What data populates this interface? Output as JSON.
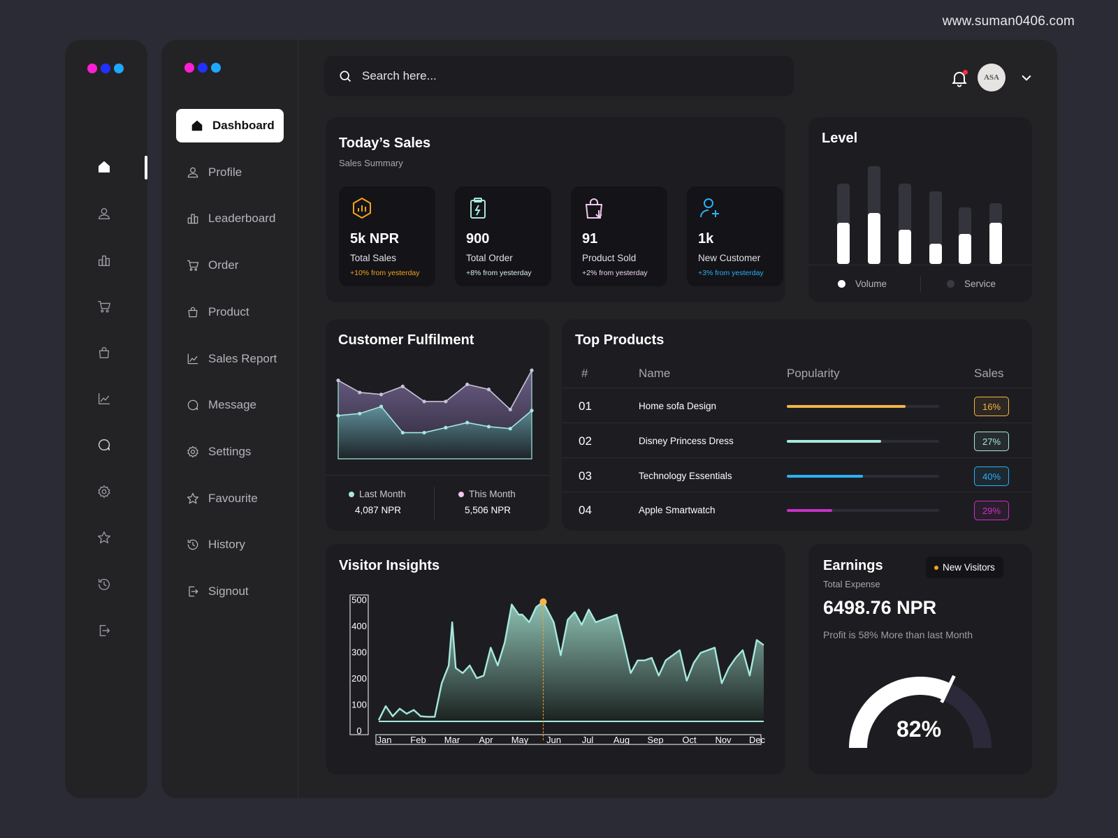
{
  "watermark": "www.suman0406.com",
  "brand_dots": [
    "#ff1fd2",
    "#2231ff",
    "#1ea8ff"
  ],
  "rail": {
    "icons": [
      "home-icon",
      "profile-icon",
      "leaderboard-icon",
      "cart-icon",
      "bag-icon",
      "chart-icon",
      "message-icon",
      "settings-icon",
      "star-icon",
      "history-icon",
      "signout-icon"
    ]
  },
  "nav": {
    "items": [
      {
        "label": "Dashboard",
        "icon": "home-icon",
        "active": true
      },
      {
        "label": "Profile",
        "icon": "profile-icon"
      },
      {
        "label": "Leaderboard",
        "icon": "leaderboard-icon"
      },
      {
        "label": "Order",
        "icon": "cart-icon"
      },
      {
        "label": "Product",
        "icon": "bag-icon"
      },
      {
        "label": "Sales Report",
        "icon": "chart-icon"
      },
      {
        "label": "Message",
        "icon": "message-icon"
      },
      {
        "label": "Settings",
        "icon": "settings-icon"
      },
      {
        "label": "Favourite",
        "icon": "star-icon"
      },
      {
        "label": "History",
        "icon": "history-icon"
      },
      {
        "label": "Signout",
        "icon": "signout-icon"
      }
    ]
  },
  "header": {
    "search_placeholder": "Search here...",
    "avatar_text": "ASA"
  },
  "todays_sales": {
    "title": "Today’s Sales",
    "subtitle": "Sales Summary",
    "stats": [
      {
        "value": "5k NPR",
        "label": "Total Sales",
        "change": "+10% from yesterday",
        "color": "#f7a21b",
        "icon": "sales-hexagon-icon"
      },
      {
        "value": "900",
        "label": "Total Order",
        "change": "+8% from yesterday",
        "color": "#a7e8df",
        "icon": "order-clipboard-icon"
      },
      {
        "value": "91",
        "label": "Product Sold",
        "change": "+2% from yesterday",
        "color": "#f2c6f0",
        "icon": "product-bag-icon"
      },
      {
        "value": "1k",
        "label": "New Customer",
        "change": "+3% from yesterday",
        "color": "#2bb1f5",
        "icon": "add-customer-icon"
      }
    ]
  },
  "level": {
    "title": "Level",
    "legend": [
      {
        "label": "Volume",
        "color": "#ffffff"
      },
      {
        "label": "Service",
        "color": "#3a3a44"
      }
    ]
  },
  "customer_fulfilment": {
    "title": "Customer Fulfilment",
    "legend": [
      {
        "label": "Last Month",
        "value": "4,087 NPR",
        "color": "#a7e8df"
      },
      {
        "label": "This Month",
        "value": "5,506 NPR",
        "color": "#f2c6f0"
      }
    ]
  },
  "top_products": {
    "title": "Top Products",
    "headers": [
      "#",
      "Name",
      "Popularity",
      "Sales"
    ],
    "rows": [
      {
        "num": "01",
        "name": "Home sofa Design",
        "popularity": 0.78,
        "sales": "16%",
        "color": "#f2b548"
      },
      {
        "num": "02",
        "name": "Disney Princess Dress",
        "popularity": 0.62,
        "sales": "27%",
        "color": "#a7e8df"
      },
      {
        "num": "03",
        "name": "Technology Essentials",
        "popularity": 0.5,
        "sales": "40%",
        "color": "#2bb1f5"
      },
      {
        "num": "04",
        "name": "Apple Smartwatch",
        "popularity": 0.3,
        "sales": "29%",
        "color": "#c632c4"
      }
    ]
  },
  "earnings": {
    "title": "Earnings",
    "badge": "New Visitors",
    "subtitle": "Total Expense",
    "value": "6498.76 NPR",
    "note": "Profit is 58% More than last Month",
    "gauge_value": 82,
    "gauge_label": "82%"
  },
  "chart_data": [
    {
      "type": "bar",
      "chart": "level",
      "series": [
        {
          "name": "Volume",
          "values": [
            0.42,
            0.52,
            0.35,
            0.21,
            0.31,
            0.42
          ]
        },
        {
          "name": "Service",
          "values": [
            1.0,
            1.0,
            1.0,
            1.0,
            1.0,
            1.0
          ]
        }
      ],
      "service_height_fraction": [
        0.82,
        1.0,
        0.82,
        0.74,
        0.58,
        0.62
      ]
    },
    {
      "type": "area",
      "chart": "customer_fulfilment",
      "series": [
        {
          "name": "This Month",
          "values": [
            78,
            66,
            64,
            72,
            57,
            57,
            74,
            69,
            49,
            88
          ]
        },
        {
          "name": "Last Month",
          "values": [
            43,
            45,
            52,
            26,
            26,
            31,
            36,
            32,
            30,
            48
          ]
        }
      ]
    },
    {
      "type": "area",
      "chart": "visitor_insights",
      "title": "Visitor Insights",
      "categories": [
        "Jan",
        "Feb",
        "Mar",
        "Apr",
        "May",
        "Jun",
        "Jul",
        "Aug",
        "Sep",
        "Oct",
        "Nov",
        "Dec"
      ],
      "yticks": [
        0,
        100,
        200,
        300,
        400,
        500
      ],
      "ylim": [
        0,
        500
      ],
      "highlight_category": "Jun",
      "x": [
        0,
        0.2,
        0.4,
        0.6,
        0.8,
        1.0,
        1.2,
        1.4,
        1.6,
        1.8,
        2.0,
        2.1,
        2.2,
        2.4,
        2.6,
        2.8,
        3.0,
        3.2,
        3.4,
        3.6,
        3.8,
        4.0,
        4.1,
        4.3,
        4.5,
        4.7,
        4.85,
        5.0,
        5.2,
        5.4,
        5.6,
        5.8,
        6.0,
        6.2,
        6.4,
        6.6,
        6.8,
        7.0,
        7.2,
        7.4,
        7.6,
        7.8,
        8.0,
        8.2,
        8.4,
        8.6,
        8.8,
        9.0,
        9.2,
        9.4,
        9.6,
        9.8,
        10.0,
        10.2,
        10.4,
        10.6,
        10.8,
        11.0
      ],
      "values": [
        5,
        60,
        20,
        50,
        30,
        45,
        20,
        18,
        18,
        150,
        220,
        390,
        210,
        190,
        220,
        170,
        180,
        290,
        220,
        310,
        460,
        420,
        420,
        390,
        450,
        470,
        430,
        390,
        260,
        400,
        430,
        380,
        440,
        390,
        400,
        410,
        420,
        310,
        190,
        240,
        240,
        250,
        180,
        240,
        260,
        280,
        160,
        230,
        270,
        280,
        290,
        150,
        210,
        250,
        280,
        180,
        320,
        300
      ]
    },
    {
      "type": "gauge",
      "chart": "earnings",
      "value": 82,
      "max": 100
    }
  ]
}
